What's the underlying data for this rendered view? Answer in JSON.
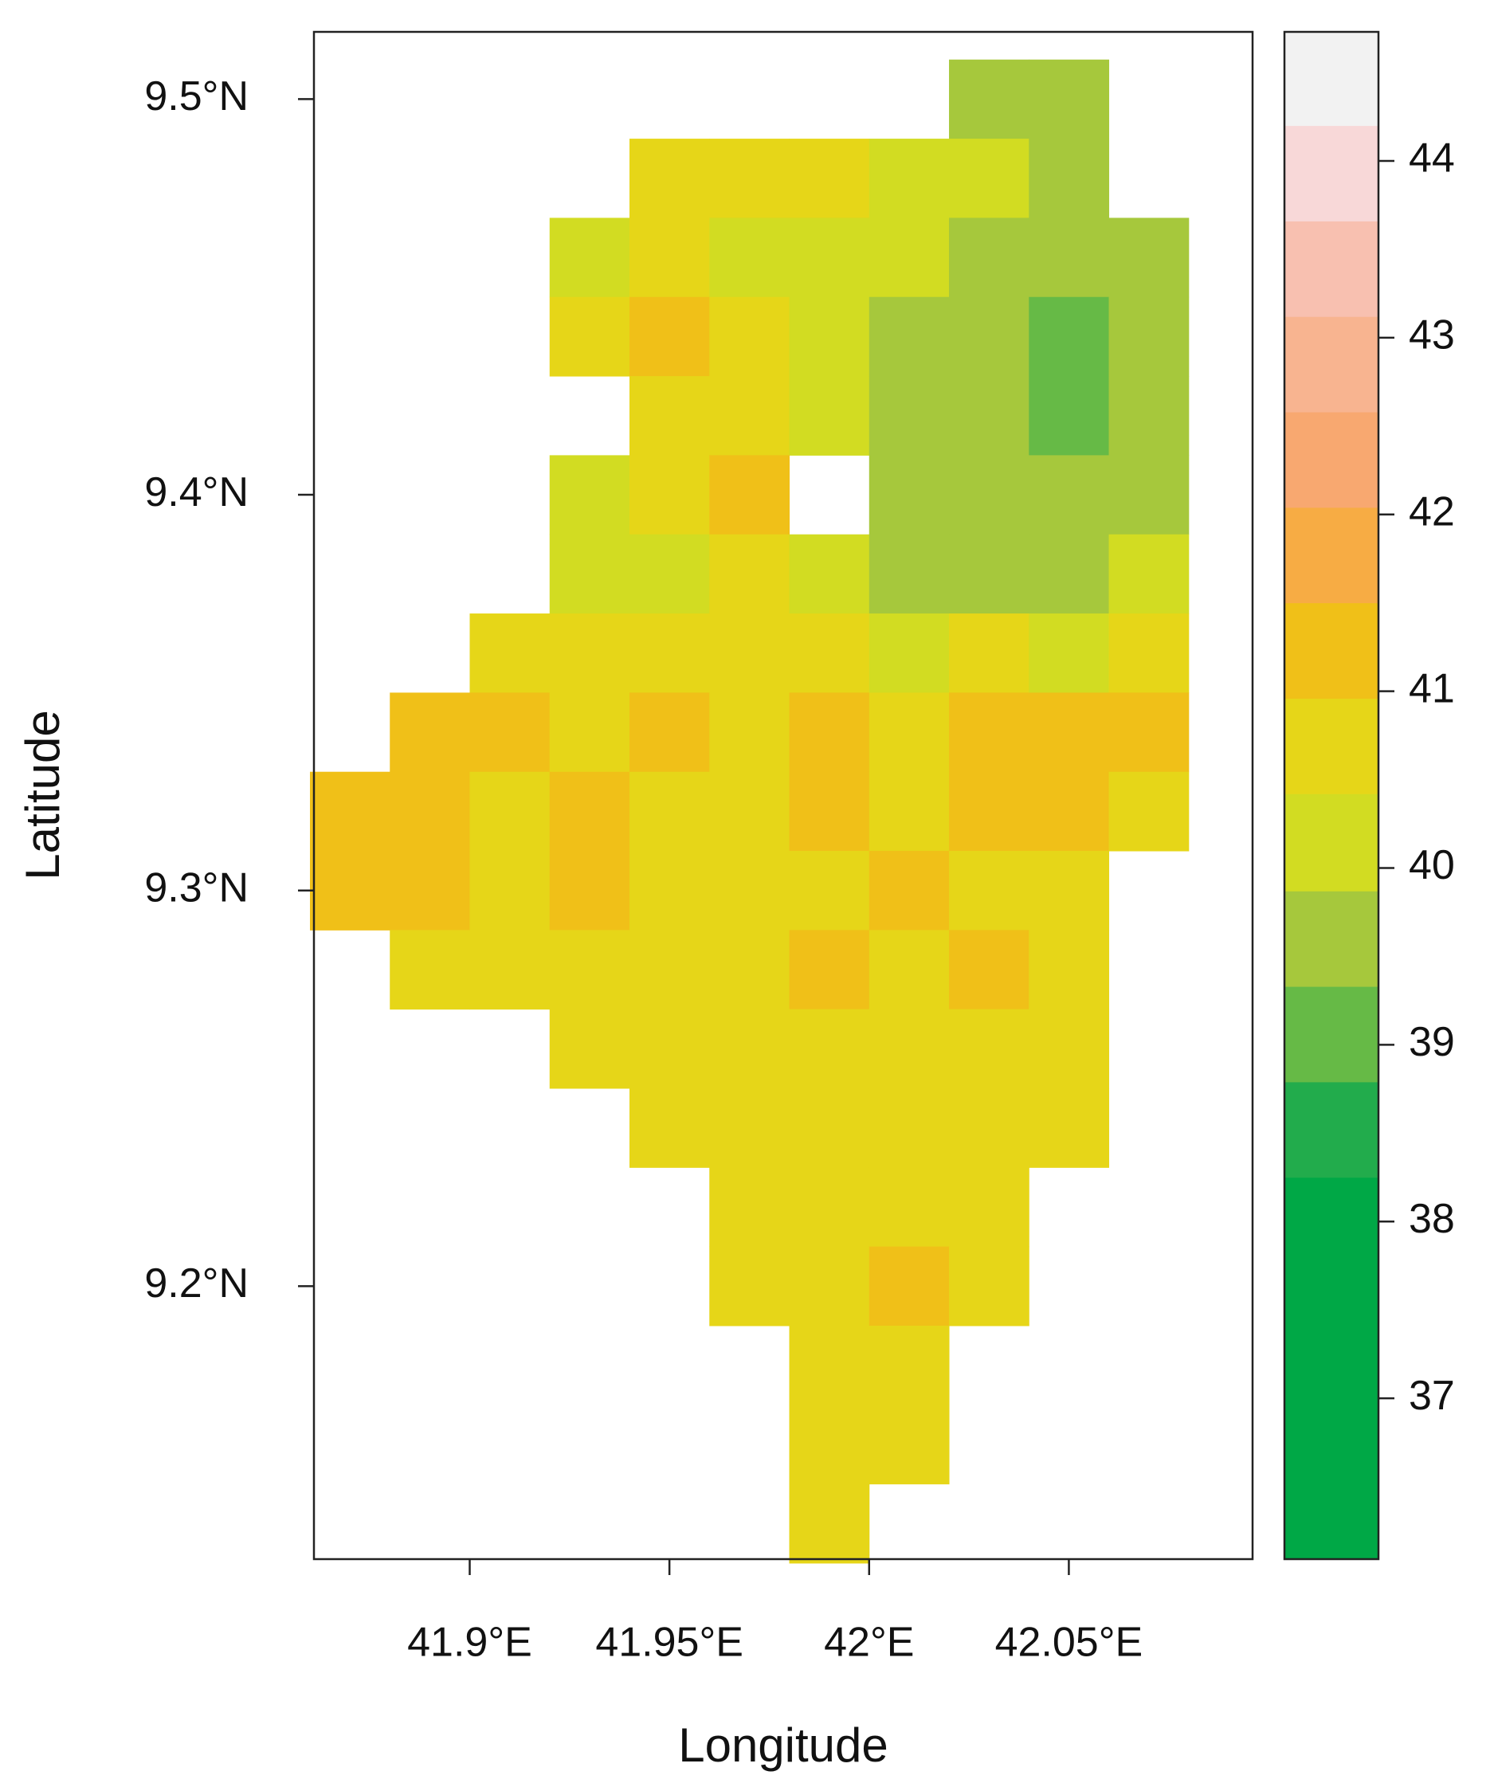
{
  "chart_data": {
    "type": "raster",
    "xlabel": "Longitude",
    "ylabel": "Latitude",
    "xlim": [
      41.861,
      42.096
    ],
    "ylim": [
      9.131,
      9.517
    ],
    "xticks": [
      {
        "value": 41.9,
        "label": "41.9°E"
      },
      {
        "value": 41.95,
        "label": "41.95°E"
      },
      {
        "value": 42,
        "label": "42°E"
      },
      {
        "value": 42.05,
        "label": "42.05°E"
      }
    ],
    "yticks": [
      {
        "value": 9.2,
        "label": "9.2°N"
      },
      {
        "value": 9.3,
        "label": "9.3°N"
      },
      {
        "value": 9.4,
        "label": "9.4°N"
      },
      {
        "value": 9.5,
        "label": "9.5°N"
      }
    ],
    "lon": [
      41.87,
      41.89,
      41.91,
      41.93,
      41.95,
      41.97,
      41.99,
      42.01,
      42.03,
      42.05,
      42.07
    ],
    "lat": [
      9.5,
      9.48,
      9.46,
      9.44,
      9.42,
      9.4,
      9.38,
      9.36,
      9.34,
      9.32,
      9.3,
      9.28,
      9.26,
      9.24,
      9.22,
      9.2,
      9.18,
      9.16,
      9.14
    ],
    "values": [
      [
        null,
        null,
        null,
        null,
        null,
        null,
        null,
        null,
        39.6,
        39.8,
        null
      ],
      [
        null,
        null,
        null,
        null,
        40.6,
        40.7,
        40.5,
        40.2,
        39.9,
        39.7,
        null
      ],
      [
        null,
        null,
        null,
        40.3,
        40.7,
        40.4,
        40.1,
        39.9,
        39.6,
        39.5,
        39.8
      ],
      [
        null,
        null,
        null,
        40.8,
        41.0,
        40.6,
        40.0,
        39.8,
        39.7,
        39.3,
        39.6
      ],
      [
        null,
        null,
        null,
        null,
        40.9,
        40.9,
        40.3,
        39.7,
        39.5,
        39.3,
        39.4
      ],
      [
        null,
        null,
        null,
        40.2,
        40.8,
        41.0,
        null,
        39.7,
        39.6,
        39.4,
        39.7
      ],
      [
        null,
        null,
        null,
        40.4,
        40.3,
        40.5,
        40.0,
        39.7,
        39.5,
        39.6,
        39.9
      ],
      [
        null,
        null,
        40.8,
        40.7,
        40.5,
        40.6,
        40.5,
        40.4,
        40.5,
        40.4,
        40.8
      ],
      [
        null,
        41.0,
        41.1,
        40.9,
        41.0,
        40.8,
        41.0,
        40.9,
        41.0,
        41.1,
        41.2
      ],
      [
        41.2,
        41.1,
        40.9,
        41.0,
        40.8,
        40.9,
        41.0,
        40.8,
        41.0,
        41.1,
        40.9
      ],
      [
        41.0,
        41.2,
        40.9,
        41.3,
        40.7,
        40.8,
        40.9,
        41.0,
        40.8,
        40.9,
        null
      ],
      [
        null,
        40.7,
        40.8,
        40.6,
        40.9,
        40.8,
        41.1,
        40.9,
        41.2,
        40.8,
        null
      ],
      [
        null,
        null,
        null,
        40.7,
        40.6,
        40.9,
        40.8,
        40.7,
        40.9,
        40.7,
        null
      ],
      [
        null,
        null,
        null,
        null,
        40.8,
        40.7,
        40.9,
        40.8,
        40.7,
        40.6,
        null
      ],
      [
        null,
        null,
        null,
        null,
        null,
        40.8,
        40.7,
        40.9,
        40.6,
        null,
        null
      ],
      [
        null,
        null,
        null,
        null,
        null,
        40.7,
        40.8,
        41.1,
        40.7,
        null,
        null
      ],
      [
        null,
        null,
        null,
        null,
        null,
        null,
        40.6,
        40.8,
        null,
        null,
        null
      ],
      [
        null,
        null,
        null,
        null,
        null,
        null,
        40.7,
        40.6,
        null,
        null,
        null
      ],
      [
        null,
        null,
        null,
        null,
        null,
        null,
        40.5,
        null,
        null,
        null,
        null
      ]
    ],
    "colorbar": {
      "breaks": [
        36.09,
        38.25,
        38.79,
        39.33,
        39.87,
        40.42,
        40.96,
        41.5,
        42.04,
        42.58,
        43.12,
        43.66,
        44.2,
        44.73
      ],
      "colors": [
        "#00a846",
        "#22ac4c",
        "#66ba46",
        "#a6c83c",
        "#d2dc22",
        "#e6d618",
        "#f0c018",
        "#f7ac44",
        "#f8a870",
        "#f8b490",
        "#f8c0b0",
        "#f8d8d8",
        "#f2f2f2"
      ],
      "ticks": [
        37,
        38,
        39,
        40,
        41,
        42,
        43,
        44
      ]
    }
  }
}
